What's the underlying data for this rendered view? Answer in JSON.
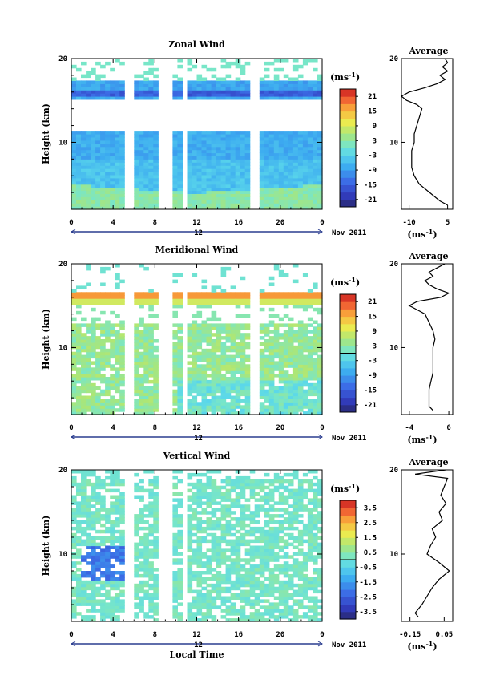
{
  "chart_data": [
    {
      "type": "heatmap",
      "title": "Zonal Wind",
      "xlabel": "",
      "ylabel": "Height (km)",
      "xlim": [
        0,
        24
      ],
      "ylim": [
        2,
        20
      ],
      "x_ticks": [
        "0",
        "4",
        "8",
        "12",
        "16",
        "20",
        "0"
      ],
      "y_ticks": [
        "20",
        "10"
      ],
      "date_label": "12",
      "month_label": "Nov 2011",
      "colorbar_unit": "(ms",
      "colorbar_unit_exp": "-1",
      "colorbar_ticks": [
        "21",
        "15",
        "9",
        "3",
        "-3",
        "-9",
        "-15",
        "-21"
      ],
      "colorbar_range": [
        -24,
        24
      ],
      "gap_columns_hours": [
        5.5,
        8.7,
        9.3,
        10.8,
        17.6
      ],
      "profile": {
        "title": "Average",
        "xlabel": "(ms",
        "xlabel_exp": "-1",
        "x_ticks": [
          "-10",
          "5"
        ],
        "x_tick_values": [
          -10,
          5
        ],
        "xlim": [
          -13,
          7
        ],
        "y_ticks": [
          "20",
          "10"
        ],
        "heights": [
          2.5,
          3,
          4,
          5,
          6,
          7,
          8,
          9,
          10,
          11,
          12,
          13,
          14,
          14.5,
          15,
          15.5,
          16,
          16.5,
          17,
          17.5,
          18,
          18.5,
          19,
          19.5,
          20
        ],
        "values": [
          5,
          2,
          -2,
          -6,
          -8,
          -9,
          -9,
          -9,
          -8,
          -8,
          -7,
          -6,
          -5,
          -7,
          -11,
          -13,
          -10,
          -4,
          1,
          4,
          2,
          5,
          3,
          5,
          4
        ]
      }
    },
    {
      "type": "heatmap",
      "title": "Meridional Wind",
      "xlabel": "",
      "ylabel": "Height (km)",
      "xlim": [
        0,
        24
      ],
      "ylim": [
        2,
        20
      ],
      "x_ticks": [
        "0",
        "4",
        "8",
        "12",
        "16",
        "20",
        "0"
      ],
      "y_ticks": [
        "20",
        "10"
      ],
      "date_label": "12",
      "month_label": "Nov 2011",
      "colorbar_unit": "(ms",
      "colorbar_unit_exp": "-1",
      "colorbar_ticks": [
        "21",
        "15",
        "9",
        "3",
        "-3",
        "-9",
        "-15",
        "-21"
      ],
      "colorbar_range": [
        -24,
        24
      ],
      "gap_columns_hours": [
        5.5,
        8.7,
        9.3,
        10.8,
        17.6
      ],
      "profile": {
        "title": "Average",
        "xlabel": "(ms",
        "xlabel_exp": "-1",
        "x_ticks": [
          "-4",
          "6"
        ],
        "x_tick_values": [
          -4,
          6
        ],
        "xlim": [
          -6,
          7
        ],
        "y_ticks": [
          "20",
          "10"
        ],
        "heights": [
          2.5,
          3,
          4,
          5,
          6,
          7,
          8,
          9,
          10,
          11,
          12,
          13,
          14,
          14.5,
          15,
          15.5,
          16,
          16.5,
          17,
          17.5,
          18,
          18.5,
          19,
          19.5,
          20
        ],
        "values": [
          2,
          1,
          1,
          1,
          1.5,
          2,
          2,
          2,
          2,
          2.5,
          2,
          1,
          0,
          -2,
          -4,
          -2,
          4,
          6,
          3,
          1,
          0,
          2,
          1,
          3,
          5
        ]
      }
    },
    {
      "type": "heatmap",
      "title": "Vertical Wind",
      "xlabel": "Local Time",
      "ylabel": "Height (km)",
      "xlim": [
        0,
        24
      ],
      "ylim": [
        2,
        20
      ],
      "x_ticks": [
        "0",
        "4",
        "8",
        "12",
        "16",
        "20",
        "0"
      ],
      "y_ticks": [
        "20",
        "10"
      ],
      "date_label": "12",
      "month_label": "Nov 2011",
      "colorbar_unit": "(ms",
      "colorbar_unit_exp": "-1",
      "colorbar_ticks": [
        "3.5",
        "2.5",
        "1.5",
        "0.5",
        "-0.5",
        "-1.5",
        "-2.5",
        "-3.5"
      ],
      "colorbar_range": [
        -4,
        4
      ],
      "gap_columns_hours": [
        5.5,
        8.7,
        9.3,
        10.8
      ],
      "profile": {
        "title": "Average",
        "xlabel": "(ms",
        "xlabel_exp": "-1",
        "x_ticks": [
          "-0.15",
          "0.05"
        ],
        "x_tick_values": [
          -0.15,
          0.05
        ],
        "xlim": [
          -0.2,
          0.1
        ],
        "y_ticks": [
          "20",
          "10"
        ],
        "heights": [
          2.5,
          3,
          4,
          5,
          6,
          7,
          8,
          9,
          10,
          11,
          12,
          13,
          14,
          15,
          16,
          17,
          18,
          19,
          19.5,
          20
        ],
        "values": [
          -0.1,
          -0.12,
          -0.08,
          -0.05,
          -0.02,
          0.02,
          0.08,
          0.02,
          -0.05,
          -0.03,
          0.0,
          -0.02,
          0.04,
          0.02,
          0.06,
          0.03,
          0.05,
          0.07,
          -0.12,
          0.06
        ]
      }
    }
  ]
}
